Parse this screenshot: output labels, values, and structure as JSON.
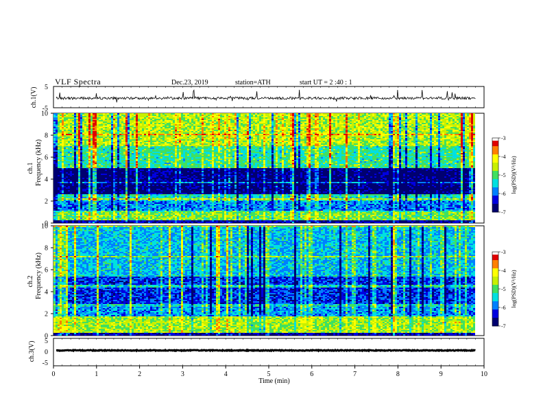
{
  "header": {
    "title": "VLF  Spectra",
    "date": "Dec.23, 2019",
    "station": "station=ATH",
    "start": "start  UT  =    2  :40 : 1"
  },
  "colors": {
    "background": "#ffffff",
    "trace": "#000000",
    "colormap": [
      "#000070",
      "#0000e0",
      "#0080ff",
      "#00e0e0",
      "#40e060",
      "#c8f000",
      "#ffff00",
      "#ff8000",
      "#e00000",
      "#ffffff"
    ]
  },
  "chart_data": [
    {
      "type": "line",
      "name": "ch1-waveform",
      "ylabel": "ch.1(V)",
      "ylim": [
        -5,
        5
      ],
      "yticks": [
        "5",
        "-5"
      ],
      "xlim": [
        0,
        10
      ],
      "trace_approx_level": -0.5,
      "trace_approx_spread": 1.2
    },
    {
      "type": "heatmap",
      "name": "ch1-spectrogram",
      "ylabel": "ch.1\nFrequency  (kHz)",
      "ylabel_line1": "ch.1",
      "ylabel_line2": "Frequency  (kHz)",
      "ylim": [
        0,
        10
      ],
      "yticks": [
        "0",
        "2",
        "4",
        "6",
        "8",
        "10"
      ],
      "xlim": [
        0,
        9.8
      ],
      "zlabel": "log(PSD)(V²/Hz)",
      "zlim": [
        -7,
        -3
      ],
      "zticks": [
        "-3",
        "-4",
        "-5",
        "-6",
        "-7"
      ],
      "bands": [
        {
          "f": [
            0,
            0.3
          ],
          "level": -6.6
        },
        {
          "f": [
            0.3,
            1.0
          ],
          "level": -4.8
        },
        {
          "f": [
            1.0,
            2.0
          ],
          "level": -5.9
        },
        {
          "f": [
            2.0,
            2.6
          ],
          "level": -5.3
        },
        {
          "f": [
            2.6,
            5.0
          ],
          "level": -6.8
        },
        {
          "f": [
            5.0,
            7.0
          ],
          "level": -5.2
        },
        {
          "f": [
            7.0,
            10.0
          ],
          "level": -4.6
        }
      ]
    },
    {
      "type": "heatmap",
      "name": "ch2-spectrogram",
      "ylabel": "ch.2\nFrequency  (kHz)",
      "ylabel_line1": "ch.2",
      "ylabel_line2": "Frequency  (kHz)",
      "ylim": [
        0,
        10
      ],
      "yticks": [
        "0",
        "2",
        "4",
        "6",
        "8",
        "10"
      ],
      "xlim": [
        0,
        9.8
      ],
      "zlabel": "log(PSD)(V²/Hz)",
      "zlim": [
        -7,
        -3
      ],
      "zticks": [
        "-3",
        "-4",
        "-5",
        "-6",
        "-7"
      ],
      "bands": [
        {
          "f": [
            0,
            0.3
          ],
          "level": -6.6
        },
        {
          "f": [
            0.3,
            1.8
          ],
          "level": -4.7
        },
        {
          "f": [
            1.8,
            2.6
          ],
          "level": -5.8
        },
        {
          "f": [
            2.6,
            5.5
          ],
          "level": -6.2
        },
        {
          "f": [
            5.5,
            10.0
          ],
          "level": -5.6
        }
      ]
    },
    {
      "type": "line",
      "name": "ch3-waveform",
      "ylabel": "ch.3(V)",
      "ylim": [
        -5,
        5
      ],
      "yticks": [
        "5",
        "0",
        "-5"
      ],
      "xlim": [
        0,
        9.8
      ],
      "trace_approx_level": 0.6,
      "trace_approx_spread": 0.3,
      "xlabel": "Time  (min)",
      "xticks": [
        "0",
        "1",
        "2",
        "3",
        "4",
        "5",
        "6",
        "7",
        "8",
        "9",
        "10"
      ],
      "xrange": [
        0,
        10
      ]
    }
  ]
}
